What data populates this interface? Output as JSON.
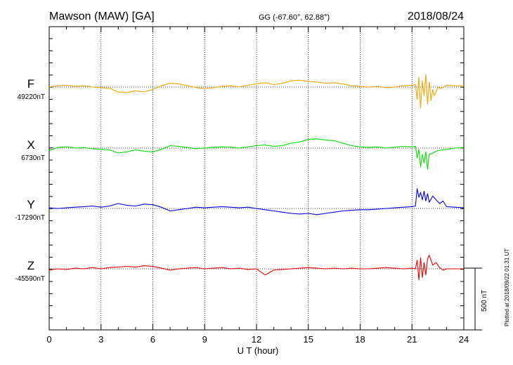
{
  "header": {
    "station": "Mawson (MAW)  [GA]",
    "coords": "GG (-67.60°,  62.88°)",
    "date": "2018/08/24"
  },
  "footer_note": "Plotted at 2018/09/22 01:31  UT",
  "scale_label": "500 nT",
  "colors": {
    "F": "#f5a400",
    "X": "#00dd00",
    "Y": "#0000dd",
    "Z": "#ee0000"
  },
  "chart_data": {
    "type": "line",
    "xlabel": "U T (hour)",
    "xlim": [
      0,
      24
    ],
    "x_ticks": [
      "0",
      "3",
      "6",
      "9",
      "12",
      "15",
      "18",
      "21",
      "24"
    ],
    "scale_bar_nT": 500,
    "series": [
      {
        "name": "F",
        "baseline_label": "49220nT",
        "baseline": 49220,
        "x": [
          0,
          0.5,
          1,
          1.5,
          2,
          2.5,
          3,
          3.5,
          4,
          4.5,
          5,
          5.5,
          6,
          6.5,
          7,
          7.5,
          8,
          8.5,
          9,
          9.5,
          10,
          10.5,
          11,
          11.5,
          12,
          12.5,
          13,
          13.5,
          14,
          14.5,
          15,
          15.5,
          16,
          16.5,
          17,
          17.5,
          18,
          18.5,
          19,
          19.5,
          20,
          20.5,
          21,
          21.2,
          21.3,
          21.4,
          21.5,
          21.6,
          21.7,
          21.8,
          21.9,
          22,
          22.1,
          22.2,
          22.3,
          22.5,
          22.7,
          23,
          23.5,
          24
        ],
        "y": [
          49220,
          49230,
          49235,
          49225,
          49230,
          49220,
          49215,
          49210,
          49180,
          49175,
          49190,
          49180,
          49200,
          49230,
          49250,
          49245,
          49230,
          49215,
          49210,
          49215,
          49225,
          49230,
          49220,
          49235,
          49245,
          49255,
          49240,
          49250,
          49270,
          49275,
          49265,
          49260,
          49250,
          49255,
          49245,
          49230,
          49225,
          49220,
          49225,
          49215,
          49220,
          49230,
          49235,
          49240,
          49120,
          49300,
          49050,
          49270,
          49150,
          49320,
          49080,
          49260,
          49110,
          49200,
          49150,
          49220,
          49210,
          49235,
          49230,
          49230
        ]
      },
      {
        "name": "X",
        "baseline_label": "6730nT",
        "baseline": 6730,
        "x": [
          0,
          0.5,
          1,
          1.5,
          2,
          2.5,
          3,
          3.5,
          4,
          4.5,
          5,
          5.5,
          6,
          6.5,
          7,
          7.5,
          8,
          8.5,
          9,
          9.5,
          10,
          10.5,
          11,
          11.5,
          12,
          12.5,
          13,
          13.5,
          14,
          14.5,
          15,
          15.5,
          16,
          16.5,
          17,
          17.5,
          18,
          18.5,
          19,
          19.5,
          20,
          20.5,
          21,
          21.2,
          21.3,
          21.4,
          21.5,
          21.6,
          21.7,
          21.8,
          21.9,
          22,
          22.2,
          22.5,
          23,
          23.5,
          24
        ],
        "y": [
          6710,
          6735,
          6740,
          6730,
          6735,
          6725,
          6720,
          6715,
          6690,
          6700,
          6715,
          6705,
          6700,
          6720,
          6750,
          6745,
          6735,
          6725,
          6730,
          6735,
          6740,
          6738,
          6730,
          6740,
          6750,
          6755,
          6745,
          6750,
          6770,
          6780,
          6800,
          6805,
          6795,
          6790,
          6770,
          6750,
          6740,
          6735,
          6740,
          6730,
          6738,
          6745,
          6740,
          6745,
          6650,
          6720,
          6580,
          6680,
          6610,
          6700,
          6560,
          6680,
          6690,
          6710,
          6720,
          6730,
          6735
        ]
      },
      {
        "name": "Y",
        "baseline_label": "-17290nT",
        "baseline": -17290,
        "x": [
          0,
          0.5,
          1,
          1.5,
          2,
          2.5,
          3,
          3.5,
          4,
          4.5,
          5,
          5.5,
          6,
          6.5,
          7,
          7.5,
          8,
          8.5,
          9,
          9.5,
          10,
          10.5,
          11,
          11.5,
          12,
          12.5,
          13,
          13.5,
          14,
          14.5,
          15,
          15.5,
          16,
          16.5,
          17,
          17.5,
          18,
          18.5,
          19,
          19.5,
          20,
          20.5,
          21,
          21.2,
          21.3,
          21.4,
          21.5,
          21.6,
          21.7,
          21.8,
          21.9,
          22,
          22.2,
          22.4,
          22.6,
          22.8,
          23,
          23.5,
          24
        ],
        "y": [
          -17285,
          -17290,
          -17285,
          -17280,
          -17275,
          -17270,
          -17280,
          -17270,
          -17250,
          -17265,
          -17270,
          -17255,
          -17260,
          -17280,
          -17310,
          -17300,
          -17290,
          -17280,
          -17285,
          -17280,
          -17275,
          -17280,
          -17285,
          -17280,
          -17290,
          -17300,
          -17310,
          -17320,
          -17330,
          -17335,
          -17330,
          -17340,
          -17330,
          -17320,
          -17310,
          -17305,
          -17300,
          -17300,
          -17295,
          -17290,
          -17285,
          -17280,
          -17275,
          -17270,
          -17130,
          -17200,
          -17160,
          -17220,
          -17150,
          -17230,
          -17170,
          -17240,
          -17190,
          -17220,
          -17250,
          -17230,
          -17275,
          -17280,
          -17285
        ]
      },
      {
        "name": "Z",
        "baseline_label": "-45590nT",
        "baseline": -45590,
        "x": [
          0,
          0.5,
          1,
          1.5,
          2,
          2.5,
          3,
          3.5,
          4,
          4.5,
          5,
          5.5,
          6,
          6.5,
          7,
          7.5,
          8,
          8.5,
          9,
          9.5,
          10,
          10.5,
          11,
          11.5,
          12,
          12.5,
          13,
          13.5,
          14,
          14.5,
          15,
          15.5,
          16,
          16.5,
          17,
          17.5,
          18,
          18.5,
          19,
          19.5,
          20,
          20.5,
          21,
          21.2,
          21.3,
          21.4,
          21.5,
          21.6,
          21.7,
          21.8,
          21.9,
          22,
          22.2,
          22.4,
          22.6,
          22.8,
          23,
          23.5,
          24
        ],
        "y": [
          -45600,
          -45590,
          -45595,
          -45585,
          -45590,
          -45580,
          -45590,
          -45580,
          -45575,
          -45570,
          -45575,
          -45565,
          -45570,
          -45585,
          -45600,
          -45590,
          -45585,
          -45580,
          -45590,
          -45585,
          -45580,
          -45590,
          -45585,
          -45595,
          -45590,
          -45640,
          -45600,
          -45595,
          -45590,
          -45585,
          -45580,
          -45585,
          -45590,
          -45585,
          -45590,
          -45585,
          -45590,
          -45590,
          -45585,
          -45580,
          -45585,
          -45590,
          -45585,
          -45590,
          -45520,
          -45680,
          -45500,
          -45660,
          -45540,
          -45640,
          -45510,
          -45480,
          -45560,
          -45540,
          -45580,
          -45600,
          -45590,
          -45590,
          -45590
        ]
      }
    ]
  }
}
